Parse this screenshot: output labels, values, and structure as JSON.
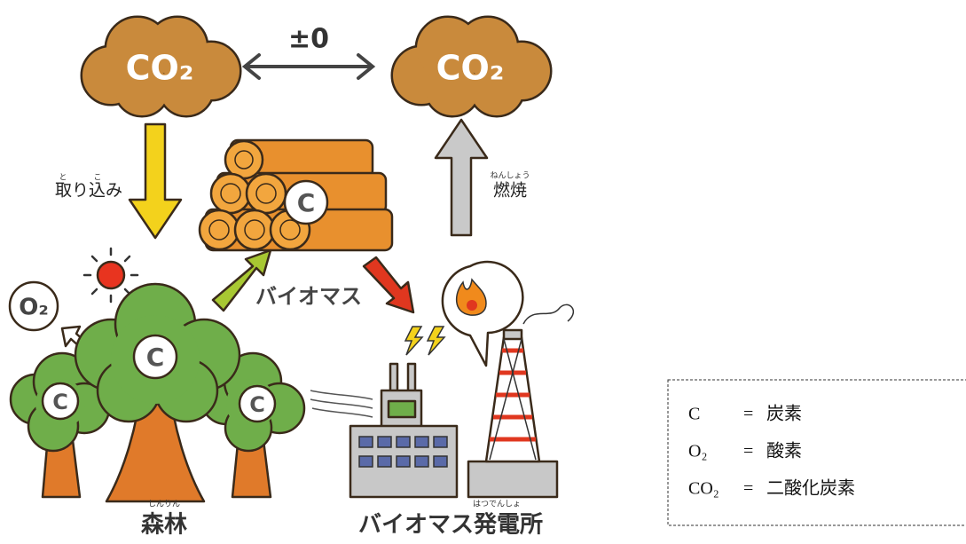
{
  "clouds": [
    "CO₂",
    "CO₂"
  ],
  "balance": "±0",
  "uptake": {
    "label": "取り込み",
    "ruby": [
      "と",
      "こ"
    ]
  },
  "combustion": {
    "label": "燃焼",
    "ruby": "ねんしょう"
  },
  "biomass": "バイオマス",
  "oxygen": "O₂",
  "carbon_marks": [
    "C",
    "C",
    "C",
    "C"
  ],
  "forest": {
    "label": "森林",
    "ruby": "しんりん"
  },
  "plant": {
    "label": "バイオマス発電所",
    "ruby": "はつでんしょ"
  },
  "legend": {
    "rows": [
      {
        "symbol": "C",
        "eq": "=",
        "meaning": "炭素"
      },
      {
        "symbol": "O₂",
        "eq": "=",
        "meaning": "酸素"
      },
      {
        "symbol": "CO₂",
        "eq": "=",
        "meaning": "二酸化炭素"
      }
    ]
  }
}
